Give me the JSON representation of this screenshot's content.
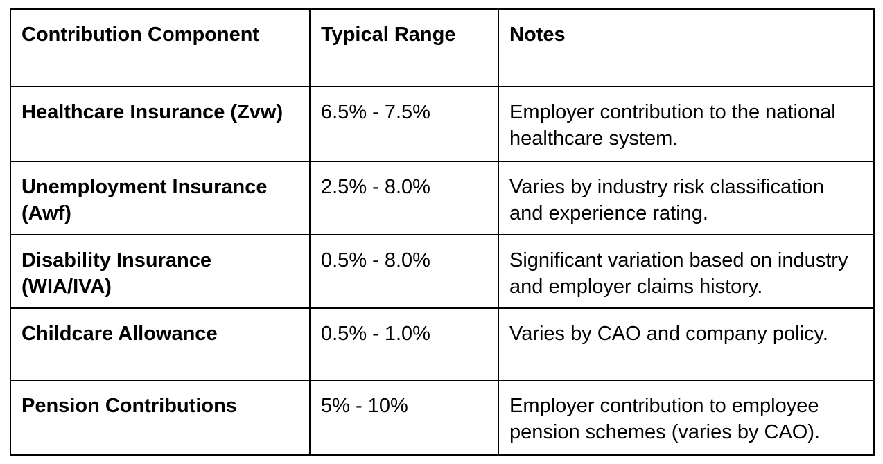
{
  "table": {
    "columns": {
      "component": "Contribution Component",
      "range": "Typical Range",
      "notes": "Notes"
    },
    "rows": [
      {
        "component": "Healthcare Insurance (Zvw)",
        "range": "6.5% - 7.5%",
        "notes": "Employer contribution to the national healthcare system."
      },
      {
        "component": "Unemployment Insurance (Awf)",
        "range": "2.5% - 8.0%",
        "notes": "Varies by industry risk classification and experience rating."
      },
      {
        "component": "Disability Insurance (WIA/IVA)",
        "range": "0.5% - 8.0%",
        "notes": "Significant variation based on industry and employer claims history."
      },
      {
        "component": "Childcare Allowance",
        "range": "0.5% - 1.0%",
        "notes": "Varies by CAO and company policy."
      },
      {
        "component": "Pension Contributions",
        "range": "5% - 10%",
        "notes": "Employer contribution to employee pension schemes (varies by CAO)."
      }
    ]
  }
}
